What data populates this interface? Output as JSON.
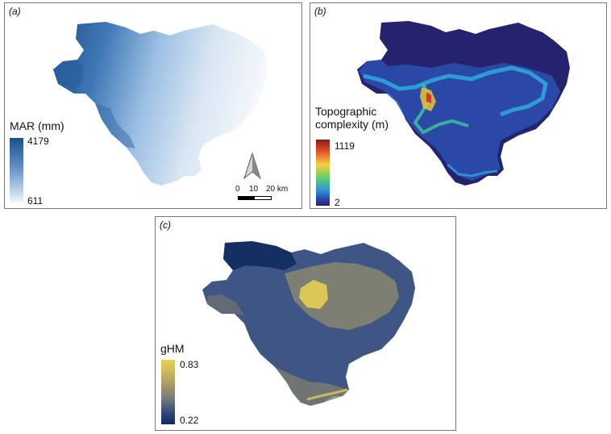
{
  "panels": {
    "a": {
      "label": "(a)",
      "legend_title": "MAR (mm)",
      "legend_max": "4179",
      "legend_min": "611",
      "colors": {
        "high": "#1d4f8c",
        "low": "#f2f6fb"
      }
    },
    "b": {
      "label": "(b)",
      "legend_title_line1": "Topographic",
      "legend_title_line2": "complexity (m)",
      "legend_max": "1119",
      "legend_min": "2",
      "colors": {
        "high": "#8b1a12",
        "mid": "#f5d23c",
        "low": "#24206a"
      }
    },
    "c": {
      "label": "(c)",
      "legend_title": "gHM",
      "legend_max": "0.83",
      "legend_min": "0.22",
      "colors": {
        "high": "#e9d34d",
        "low": "#0d2a5b"
      }
    }
  },
  "scale": {
    "tick_0": "0",
    "tick_10": "10",
    "tick_20": "20 km"
  },
  "icons": {
    "north_arrow": "north-arrow-icon"
  }
}
